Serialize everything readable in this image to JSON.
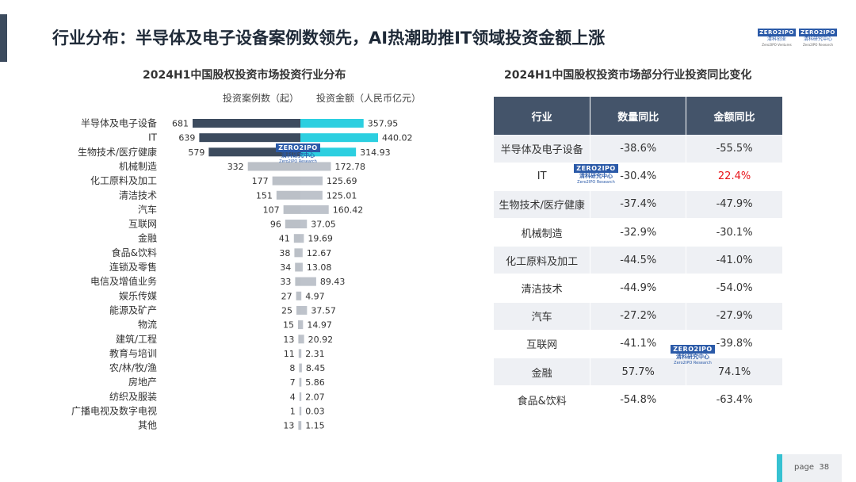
{
  "page": {
    "title": "行业分布：半导体及电子设备案例数领先，AI热潮助推IT领域投资金额上涨",
    "page_label": "page",
    "page_number": "38"
  },
  "logos": [
    {
      "top": "ZERO2IPO",
      "bottom": "清科创业",
      "sub": "Zero2IPO Ventures"
    },
    {
      "top": "ZERO2IPO",
      "bottom": "清科研究中心",
      "sub": "Zero2IPO Research"
    }
  ],
  "watermark": {
    "top": "ZERO2IPO",
    "bottom": "清科研究中心",
    "sub": "Zero2IPO Research"
  },
  "colors": {
    "cases_bar": "#3c4b5e",
    "amount_bar": "#2ccfe0",
    "header_bg": "#44546a",
    "highlight_red": "#e8141a",
    "accent": "#36c1d1"
  },
  "chart_data": [
    {
      "type": "bar",
      "title": "2024H1中国股权投资市场投资行业分布",
      "legend": {
        "left": "投资案例数（起）",
        "right": "投资金额（人民币亿元）"
      },
      "categories": [
        "半导体及电子设备",
        "IT",
        "生物技术/医疗健康",
        "机械制造",
        "化工原料及加工",
        "清洁技术",
        "汽车",
        "互联网",
        "金融",
        "食品&饮料",
        "连锁及零售",
        "电信及增值业务",
        "娱乐传媒",
        "能源及矿产",
        "物流",
        "建筑/工程",
        "教育与培训",
        "农/林/牧/渔",
        "房地产",
        "纺织及服装",
        "广播电视及数字电视",
        "其他"
      ],
      "series": [
        {
          "name": "投资案例数（起）",
          "values": [
            681,
            639,
            579,
            332,
            177,
            151,
            107,
            96,
            41,
            38,
            34,
            33,
            27,
            25,
            15,
            13,
            11,
            8,
            7,
            4,
            1,
            13
          ]
        },
        {
          "name": "投资金额（人民币亿元）",
          "values": [
            357.95,
            440.02,
            314.93,
            172.78,
            125.69,
            125.01,
            160.42,
            37.05,
            19.69,
            12.67,
            13.08,
            89.43,
            4.97,
            37.57,
            14.97,
            20.92,
            2.31,
            8.45,
            5.86,
            2.07,
            0.03,
            1.15
          ]
        }
      ],
      "value_labels": {
        "cases": [
          "681",
          "639",
          "579",
          "332",
          "177",
          "151",
          "107",
          "96",
          "41",
          "38",
          "34",
          "33",
          "27",
          "25",
          "15",
          "13",
          "11",
          "8",
          "7",
          "4",
          "1",
          "13"
        ],
        "amount": [
          "357.95",
          "440.02",
          "314.93",
          "172.78",
          "125.69",
          "125.01",
          "160.42",
          "37.05",
          "19.69",
          "12.67",
          "13.08",
          "89.43",
          "4.97",
          "37.57",
          "14.97",
          "20.92",
          "2.31",
          "8.45",
          "5.86",
          "2.07",
          "0.03",
          "1.15"
        ]
      }
    },
    {
      "type": "table",
      "title": "2024H1中国股权投资市场部分行业投资同比变化",
      "columns": [
        "行业",
        "数量同比",
        "金额同比"
      ],
      "rows": [
        [
          "半导体及电子设备",
          "-38.6%",
          "-55.5%"
        ],
        [
          "IT",
          "-30.4%",
          "22.4%"
        ],
        [
          "生物技术/医疗健康",
          "-37.4%",
          "-47.9%"
        ],
        [
          "机械制造",
          "-32.9%",
          "-30.1%"
        ],
        [
          "化工原料及加工",
          "-44.5%",
          "-41.0%"
        ],
        [
          "清洁技术",
          "-44.9%",
          "-54.0%"
        ],
        [
          "汽车",
          "-27.2%",
          "-27.9%"
        ],
        [
          "互联网",
          "-41.1%",
          "-39.8%"
        ],
        [
          "金融",
          "57.7%",
          "74.1%"
        ],
        [
          "食品&饮料",
          "-54.8%",
          "-63.4%"
        ]
      ],
      "highlighted_cell": {
        "row": 1,
        "col": 2
      }
    }
  ]
}
